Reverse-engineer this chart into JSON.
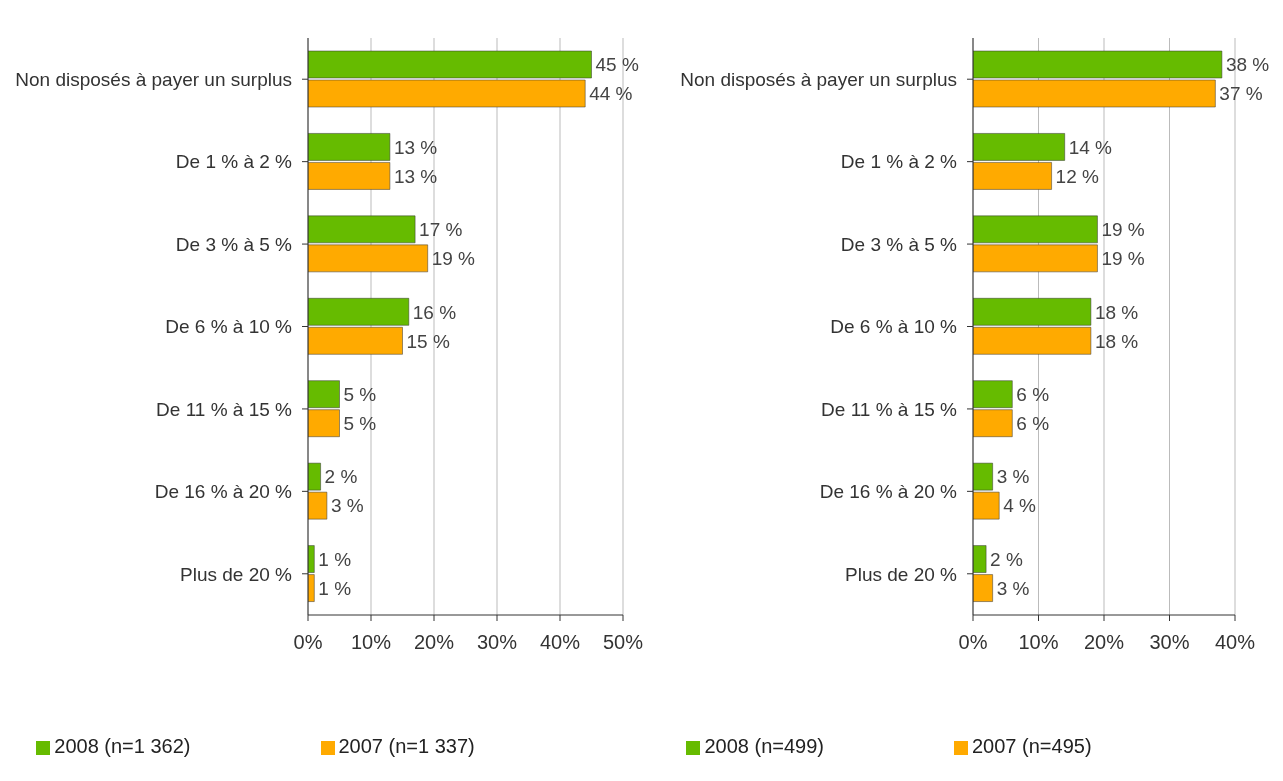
{
  "chart_data": [
    {
      "type": "bar",
      "orientation": "horizontal",
      "categories": [
        "Non disposés à payer un surplus",
        "De 1 % à 2 %",
        "De 3 % à 5 %",
        "De 6 % à 10 %",
        "De 11 % à 15 %",
        "De 16 % à 20 %",
        "Plus de 20 %"
      ],
      "series": [
        {
          "name": "2008 (n=1 362)",
          "color": "#66bb00",
          "values": [
            45,
            13,
            17,
            16,
            5,
            2,
            1
          ],
          "value_labels": [
            "45 %",
            "13 %",
            "17 %",
            "16 %",
            "5 %",
            "2 %",
            "1 %"
          ]
        },
        {
          "name": "2007 (n=1 337)",
          "color": "#ffaa00",
          "values": [
            44,
            13,
            19,
            15,
            5,
            3,
            1
          ],
          "value_labels": [
            "44 %",
            "13 %",
            "19 %",
            "15 %",
            "5 %",
            "3 %",
            "1 %"
          ]
        }
      ],
      "xlim": [
        0,
        50
      ],
      "xticks": [
        {
          "value": 0,
          "label": "0%"
        },
        {
          "value": 10,
          "label": "10%"
        },
        {
          "value": 20,
          "label": "20%"
        },
        {
          "value": 30,
          "label": "30%"
        },
        {
          "value": 40,
          "label": "40%"
        },
        {
          "value": 50,
          "label": "50%"
        }
      ],
      "grid": "x",
      "legend": "bottom"
    },
    {
      "type": "bar",
      "orientation": "horizontal",
      "categories": [
        "Non disposés à payer un surplus",
        "De 1 % à 2 %",
        "De 3 % à 5 %",
        "De 6 % à 10 %",
        "De 11 % à 15 %",
        "De 16 % à 20 %",
        "Plus de 20 %"
      ],
      "series": [
        {
          "name": "2008 (n=499)",
          "color": "#66bb00",
          "values": [
            38,
            14,
            19,
            18,
            6,
            3,
            2
          ],
          "value_labels": [
            "38 %",
            "14 %",
            "19 %",
            "18 %",
            "6 %",
            "3 %",
            "2 %"
          ]
        },
        {
          "name": "2007 (n=495)",
          "color": "#ffaa00",
          "values": [
            37,
            12,
            19,
            18,
            6,
            4,
            3
          ],
          "value_labels": [
            "37 %",
            "12 %",
            "19 %",
            "18 %",
            "6 %",
            "4 %",
            "3 %"
          ]
        }
      ],
      "xlim": [
        0,
        40
      ],
      "xticks": [
        {
          "value": 0,
          "label": "0%"
        },
        {
          "value": 10,
          "label": "10%"
        },
        {
          "value": 20,
          "label": "20%"
        },
        {
          "value": 30,
          "label": "30%"
        },
        {
          "value": 40,
          "label": "40%"
        }
      ],
      "grid": "x",
      "legend": "bottom"
    }
  ]
}
